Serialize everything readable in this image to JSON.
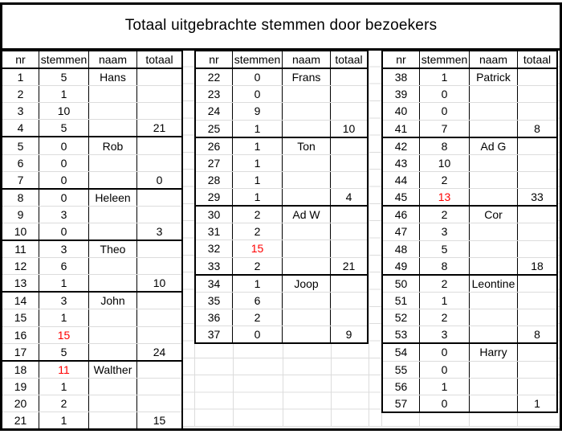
{
  "title": "Totaal uitgebrachte stemmen door bezoekers",
  "columns": [
    {
      "key": "nr",
      "label": "nr"
    },
    {
      "key": "stemmen",
      "label": "stemmen"
    },
    {
      "key": "naam",
      "label": "naam"
    },
    {
      "key": "totaal",
      "label": "totaal"
    }
  ],
  "colors": {
    "highlight_red": "#ff0000",
    "border_black": "#000000",
    "gridline_gray": "#dcdcdc"
  },
  "tables": [
    {
      "rows": [
        {
          "nr": "1",
          "stemmen": "5",
          "naam": "Hans",
          "totaal": ""
        },
        {
          "nr": "2",
          "stemmen": "1",
          "naam": "",
          "totaal": ""
        },
        {
          "nr": "3",
          "stemmen": "10",
          "naam": "",
          "totaal": ""
        },
        {
          "nr": "4",
          "stemmen": "5",
          "naam": "",
          "totaal": "21"
        },
        {
          "nr": "5",
          "stemmen": "0",
          "naam": "Rob",
          "totaal": ""
        },
        {
          "nr": "6",
          "stemmen": "0",
          "naam": "",
          "totaal": ""
        },
        {
          "nr": "7",
          "stemmen": "0",
          "naam": "",
          "totaal": "0"
        },
        {
          "nr": "8",
          "stemmen": "0",
          "naam": "Heleen",
          "totaal": ""
        },
        {
          "nr": "9",
          "stemmen": "3",
          "naam": "",
          "totaal": ""
        },
        {
          "nr": "10",
          "stemmen": "0",
          "naam": "",
          "totaal": "3"
        },
        {
          "nr": "11",
          "stemmen": "3",
          "naam": "Theo",
          "totaal": ""
        },
        {
          "nr": "12",
          "stemmen": "6",
          "naam": "",
          "totaal": ""
        },
        {
          "nr": "13",
          "stemmen": "1",
          "naam": "",
          "totaal": "10"
        },
        {
          "nr": "14",
          "stemmen": "3",
          "naam": "John",
          "totaal": ""
        },
        {
          "nr": "15",
          "stemmen": "1",
          "naam": "",
          "totaal": ""
        },
        {
          "nr": "16",
          "stemmen": "15",
          "naam": "",
          "totaal": "",
          "red": true
        },
        {
          "nr": "17",
          "stemmen": "5",
          "naam": "",
          "totaal": "24"
        },
        {
          "nr": "18",
          "stemmen": "11",
          "naam": "Walther",
          "totaal": "",
          "red": true
        },
        {
          "nr": "19",
          "stemmen": "1",
          "naam": "",
          "totaal": ""
        },
        {
          "nr": "20",
          "stemmen": "2",
          "naam": "",
          "totaal": ""
        },
        {
          "nr": "21",
          "stemmen": "1",
          "naam": "",
          "totaal": "15"
        }
      ]
    },
    {
      "rows": [
        {
          "nr": "22",
          "stemmen": "0",
          "naam": "Frans",
          "totaal": ""
        },
        {
          "nr": "23",
          "stemmen": "0",
          "naam": "",
          "totaal": ""
        },
        {
          "nr": "24",
          "stemmen": "9",
          "naam": "",
          "totaal": ""
        },
        {
          "nr": "25",
          "stemmen": "1",
          "naam": "",
          "totaal": "10"
        },
        {
          "nr": "26",
          "stemmen": "1",
          "naam": "Ton",
          "totaal": ""
        },
        {
          "nr": "27",
          "stemmen": "1",
          "naam": "",
          "totaal": ""
        },
        {
          "nr": "28",
          "stemmen": "1",
          "naam": "",
          "totaal": ""
        },
        {
          "nr": "29",
          "stemmen": "1",
          "naam": "",
          "totaal": "4"
        },
        {
          "nr": "30",
          "stemmen": "2",
          "naam": "Ad W",
          "totaal": ""
        },
        {
          "nr": "31",
          "stemmen": "2",
          "naam": "",
          "totaal": ""
        },
        {
          "nr": "32",
          "stemmen": "15",
          "naam": "",
          "totaal": "",
          "red": true
        },
        {
          "nr": "33",
          "stemmen": "2",
          "naam": "",
          "totaal": "21"
        },
        {
          "nr": "34",
          "stemmen": "1",
          "naam": "Joop",
          "totaal": ""
        },
        {
          "nr": "35",
          "stemmen": "6",
          "naam": "",
          "totaal": ""
        },
        {
          "nr": "36",
          "stemmen": "2",
          "naam": "",
          "totaal": ""
        },
        {
          "nr": "37",
          "stemmen": "0",
          "naam": "",
          "totaal": "9"
        }
      ]
    },
    {
      "rows": [
        {
          "nr": "38",
          "stemmen": "1",
          "naam": "Patrick",
          "totaal": ""
        },
        {
          "nr": "39",
          "stemmen": "0",
          "naam": "",
          "totaal": ""
        },
        {
          "nr": "40",
          "stemmen": "0",
          "naam": "",
          "totaal": ""
        },
        {
          "nr": "41",
          "stemmen": "7",
          "naam": "",
          "totaal": "8"
        },
        {
          "nr": "42",
          "stemmen": "8",
          "naam": "Ad G",
          "totaal": ""
        },
        {
          "nr": "43",
          "stemmen": "10",
          "naam": "",
          "totaal": ""
        },
        {
          "nr": "44",
          "stemmen": "2",
          "naam": "",
          "totaal": ""
        },
        {
          "nr": "45",
          "stemmen": "13",
          "naam": "",
          "totaal": "33",
          "red": true
        },
        {
          "nr": "46",
          "stemmen": "2",
          "naam": "Cor",
          "totaal": ""
        },
        {
          "nr": "47",
          "stemmen": "3",
          "naam": "",
          "totaal": ""
        },
        {
          "nr": "48",
          "stemmen": "5",
          "naam": "",
          "totaal": ""
        },
        {
          "nr": "49",
          "stemmen": "8",
          "naam": "",
          "totaal": "18"
        },
        {
          "nr": "50",
          "stemmen": "2",
          "naam": "Leontine",
          "totaal": ""
        },
        {
          "nr": "51",
          "stemmen": "1",
          "naam": "",
          "totaal": ""
        },
        {
          "nr": "52",
          "stemmen": "2",
          "naam": "",
          "totaal": ""
        },
        {
          "nr": "53",
          "stemmen": "3",
          "naam": "",
          "totaal": "8"
        },
        {
          "nr": "54",
          "stemmen": "0",
          "naam": "Harry",
          "totaal": ""
        },
        {
          "nr": "55",
          "stemmen": "0",
          "naam": "",
          "totaal": ""
        },
        {
          "nr": "56",
          "stemmen": "1",
          "naam": "",
          "totaal": ""
        },
        {
          "nr": "57",
          "stemmen": "0",
          "naam": "",
          "totaal": "1"
        }
      ]
    }
  ]
}
